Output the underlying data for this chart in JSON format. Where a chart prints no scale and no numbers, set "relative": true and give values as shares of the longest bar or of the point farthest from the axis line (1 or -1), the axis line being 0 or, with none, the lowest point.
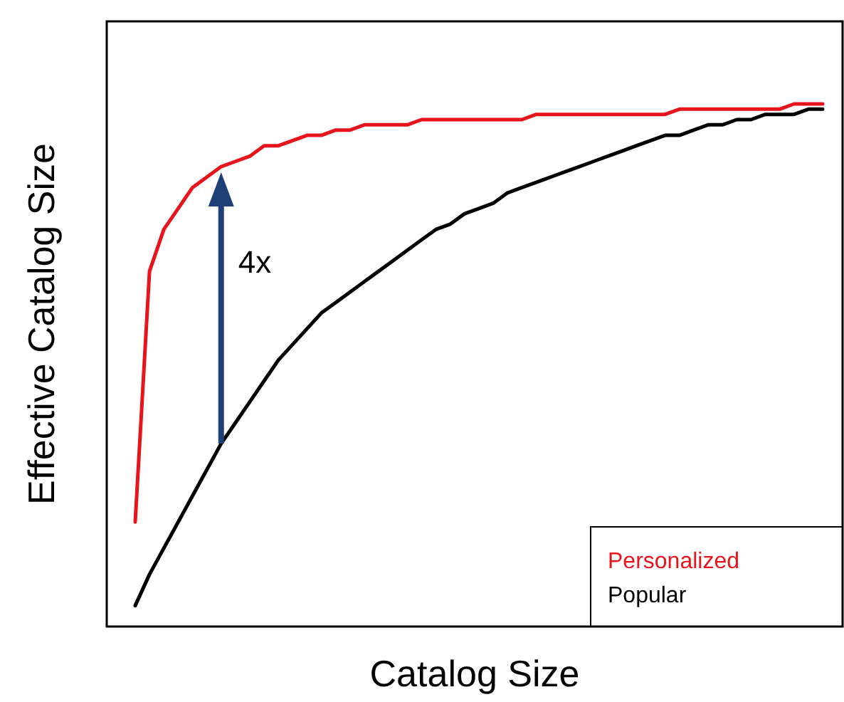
{
  "chart_data": {
    "type": "line",
    "relative": true,
    "xlabel": "Catalog Size",
    "ylabel": "Effective Catalog Size",
    "legend": "bottom right",
    "marker": "none",
    "line_style": "solid",
    "categories": [
      null,
      null,
      null,
      null,
      null,
      null,
      null,
      null,
      null,
      null,
      null,
      null,
      null,
      null,
      null,
      null,
      null,
      null,
      null,
      null,
      null,
      null,
      null,
      null,
      null,
      null,
      null,
      null,
      null,
      null,
      null,
      null,
      null,
      null,
      null,
      null,
      null,
      null,
      null,
      null,
      null,
      null,
      null,
      null,
      null,
      null,
      null,
      null,
      null
    ],
    "series": [
      {
        "name": "Personalized",
        "color": "#e8141c",
        "values": [
          0.2,
          0.68,
          0.76,
          0.8,
          0.84,
          0.86,
          0.88,
          0.89,
          0.9,
          0.92,
          0.92,
          0.93,
          0.94,
          0.94,
          0.95,
          0.95,
          0.96,
          0.96,
          0.96,
          0.96,
          0.97,
          0.97,
          0.97,
          0.97,
          0.97,
          0.97,
          0.97,
          0.97,
          0.98,
          0.98,
          0.98,
          0.98,
          0.98,
          0.98,
          0.98,
          0.98,
          0.98,
          0.98,
          0.99,
          0.99,
          0.99,
          0.99,
          0.99,
          0.99,
          0.99,
          0.99,
          1,
          1,
          1
        ]
      },
      {
        "name": "Popular",
        "color": "#000000",
        "values": [
          0.04,
          0.1,
          0.15,
          0.2,
          0.25,
          0.3,
          0.35,
          0.39,
          0.43,
          0.47,
          0.51,
          0.54,
          0.57,
          0.6,
          0.62,
          0.64,
          0.66,
          0.68,
          0.7,
          0.72,
          0.74,
          0.76,
          0.77,
          0.79,
          0.8,
          0.81,
          0.83,
          0.84,
          0.85,
          0.86,
          0.87,
          0.88,
          0.89,
          0.9,
          0.91,
          0.92,
          0.93,
          0.94,
          0.94,
          0.95,
          0.96,
          0.96,
          0.97,
          0.97,
          0.98,
          0.98,
          0.98,
          0.99,
          0.99
        ]
      }
    ],
    "annotations": [
      "4x"
    ]
  }
}
